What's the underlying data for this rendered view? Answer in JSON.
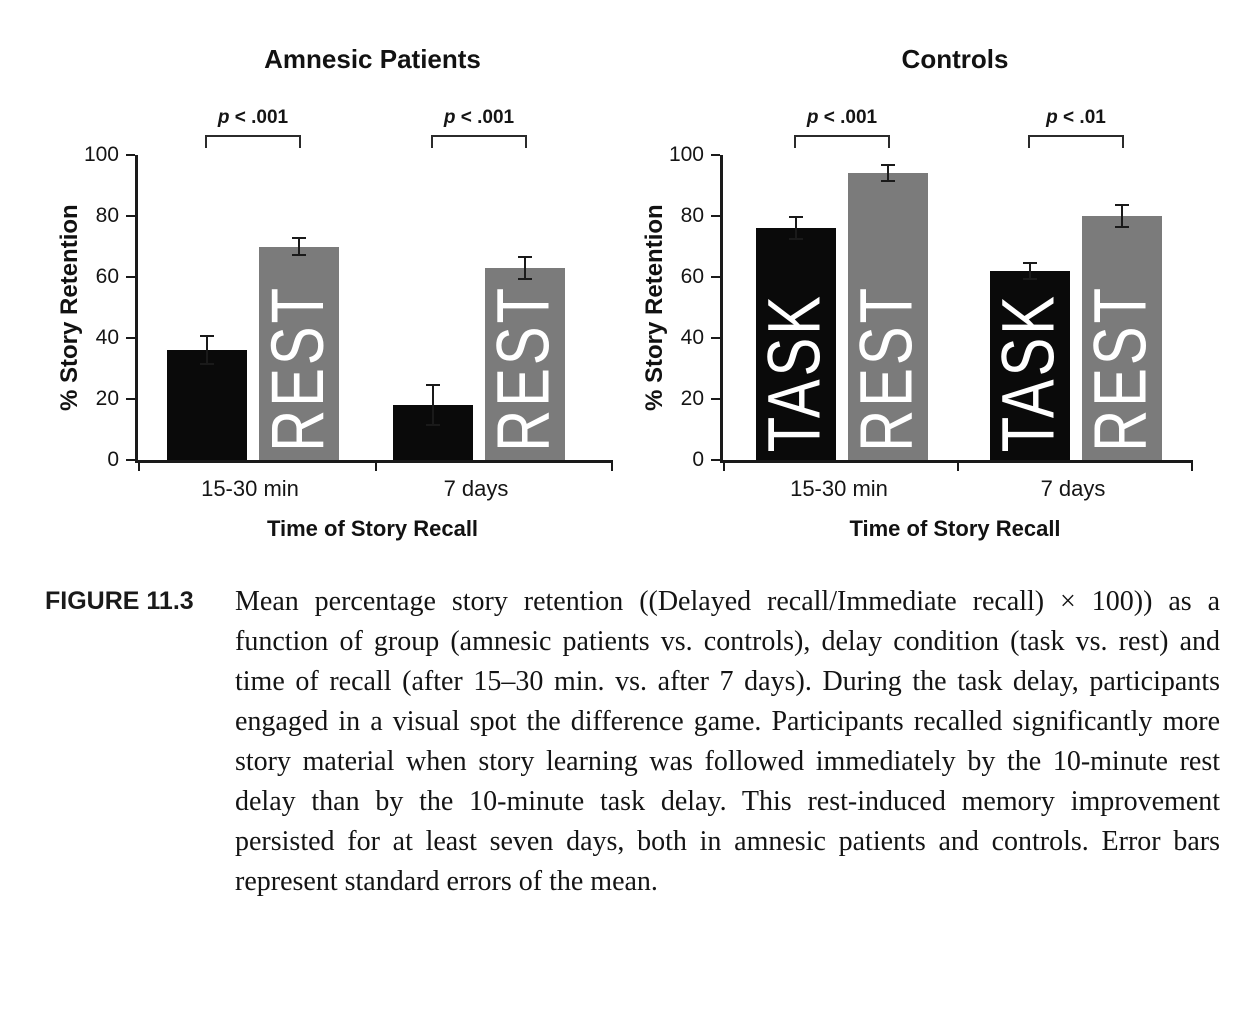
{
  "figure": {
    "label": "FIGURE 11.3",
    "caption": "Mean percentage story retention ((Delayed recall/Immediate recall) × 100)) as a function of group (amnesic patients vs. controls), delay condition (task vs. rest) and time of recall (after 15–30 min. vs. after 7 days). During the task delay, participants engaged in a visual spot the difference game. Participants recalled significantly more story material when story learning was followed immediately by the 10-minute rest delay than by the 10-minute task delay. This rest-induced memory improvement persisted for at least seven days, both in amnesic patients and controls. Error bars represent standard errors of the mean."
  },
  "colors": {
    "task_bar": "#0a0a0a",
    "rest_bar": "#7b7b7b",
    "axis": "#1a1a1a",
    "bar_label_text": "#ffffff"
  },
  "chart_data": [
    {
      "type": "bar",
      "title": "Amnesic Patients",
      "categories": [
        "15-30 min",
        "7 days"
      ],
      "series": [
        {
          "name": "TASK",
          "values": [
            36,
            18
          ],
          "errors": [
            5,
            7
          ],
          "color": "#0a0a0a",
          "label_in_bar": [
            false,
            false
          ]
        },
        {
          "name": "REST",
          "values": [
            70,
            63
          ],
          "errors": [
            3,
            4
          ],
          "color": "#7b7b7b",
          "label_in_bar": [
            true,
            true
          ]
        }
      ],
      "significance": [
        {
          "group": "15-30 min",
          "label": "p < .001"
        },
        {
          "group": "7 days",
          "label": "p < .001"
        }
      ],
      "ylabel": "% Story Retention",
      "xlabel": "Time of Story Recall",
      "ylim": [
        0,
        100
      ],
      "yticks": [
        0,
        20,
        40,
        60,
        80,
        100
      ],
      "grid": false,
      "legend": "none"
    },
    {
      "type": "bar",
      "title": "Controls",
      "categories": [
        "15-30 min",
        "7 days"
      ],
      "series": [
        {
          "name": "TASK",
          "values": [
            76,
            62
          ],
          "errors": [
            4,
            3
          ],
          "color": "#0a0a0a",
          "label_in_bar": [
            true,
            true
          ]
        },
        {
          "name": "REST",
          "values": [
            94,
            80
          ],
          "errors": [
            3,
            4
          ],
          "color": "#7b7b7b",
          "label_in_bar": [
            true,
            true
          ]
        }
      ],
      "significance": [
        {
          "group": "15-30 min",
          "label": "p < .001"
        },
        {
          "group": "7 days",
          "label": "p < .01"
        }
      ],
      "ylabel": "% Story Retention",
      "xlabel": "Time of Story Recall",
      "ylim": [
        0,
        100
      ],
      "yticks": [
        0,
        20,
        40,
        60,
        80,
        100
      ],
      "grid": false,
      "legend": "none"
    }
  ]
}
